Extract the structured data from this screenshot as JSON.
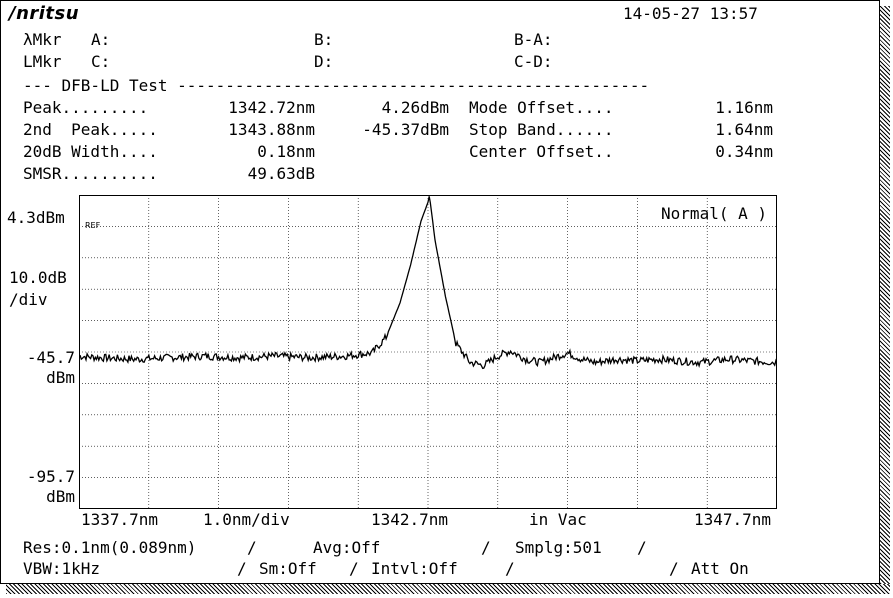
{
  "header": {
    "brand": "/nritsu",
    "datetime": "14-05-27 13:57"
  },
  "markers": {
    "lambda_mkr": "λMkr",
    "a_label": "A:",
    "b_label": "B:",
    "ba_label": "B-A:",
    "l_mkr": "LMkr",
    "c_label": "C:",
    "d_label": "D:",
    "cd_label": "C-D:"
  },
  "test": {
    "title": "--- DFB-LD Test -------------------------------------------------",
    "rows": [
      {
        "label": "Peak.........",
        "v1": "1342.72nm",
        "v2": "4.26dBm",
        "label2": "Mode Offset....",
        "v3": "1.16nm"
      },
      {
        "label": "2nd  Peak.....",
        "v1": "1343.88nm",
        "v2": "-45.37dBm",
        "label2": "Stop Band......",
        "v3": "1.64nm"
      },
      {
        "label": "20dB Width....",
        "v1": "0.18nm",
        "v2": "",
        "label2": "Center Offset..",
        "v3": "0.34nm"
      },
      {
        "label": "SMSR..........",
        "v1": "49.63dB",
        "v2": "",
        "label2": "",
        "v3": ""
      }
    ]
  },
  "plot_labels": {
    "ref_level": "4.3dBm",
    "ref_tag": "REF",
    "scale_top": "10.0dB",
    "scale_bottom": "/div",
    "mid_level_top": "-45.7",
    "mid_level_bottom": "dBm",
    "low_level_top": "-95.7",
    "low_level_bottom": "dBm",
    "mode": "Normal( A )",
    "x_start": "1337.7nm",
    "x_div": "1.0nm/div",
    "x_center": "1342.7nm",
    "medium": "in Vac",
    "x_stop": "1347.7nm"
  },
  "footer": {
    "res": "Res:0.1nm(0.089nm)",
    "sep1": "/",
    "avg": "Avg:Off",
    "sep2": "/",
    "smplg": "Smplg:501",
    "sep3": "/",
    "vbw": "VBW:1kHz",
    "sep4": "/",
    "sm": "Sm:Off",
    "sep5": "/",
    "intvl": "Intvl:Off",
    "sep6": "/",
    "sep7": "/",
    "att": "Att On"
  },
  "chart_data": {
    "type": "line",
    "xlim": [
      1337.7,
      1347.7
    ],
    "ylim": [
      -95.7,
      4.3
    ],
    "grid": true,
    "series": [
      {
        "x": [
          1337.7,
          1338.0,
          1338.5,
          1339.0,
          1339.5,
          1340.0,
          1340.5,
          1341.0,
          1341.5,
          1341.9,
          1342.1,
          1342.3,
          1342.45,
          1342.6,
          1342.7,
          1342.72,
          1342.8,
          1342.95,
          1343.1,
          1343.3,
          1343.5,
          1343.7,
          1343.88,
          1344.1,
          1344.3,
          1344.5,
          1344.7,
          1344.9,
          1345.1,
          1345.4,
          1345.7,
          1346.0,
          1346.3,
          1346.6,
          1347.0,
          1347.3,
          1347.7
        ],
        "y": [
          -47,
          -47.5,
          -48,
          -47.5,
          -47,
          -47.5,
          -47,
          -47.5,
          -47,
          -46,
          -41,
          -30,
          -18,
          -4,
          2,
          4.26,
          -10,
          -28,
          -43,
          -49,
          -50,
          -47,
          -45.37,
          -48,
          -49,
          -47.5,
          -46,
          -48,
          -49,
          -48,
          -48.5,
          -48,
          -48.5,
          -49,
          -48,
          -48.5,
          -49
        ]
      }
    ]
  }
}
